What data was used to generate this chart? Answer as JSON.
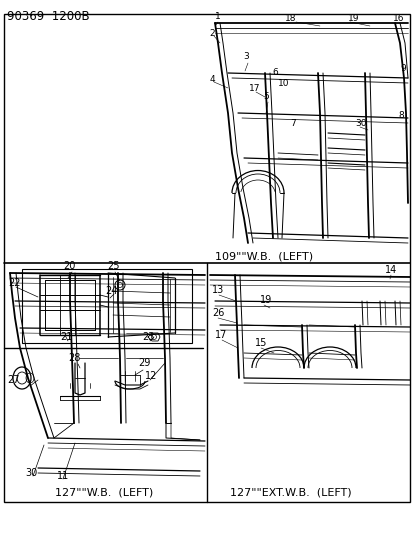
{
  "title": "90369  1200B",
  "bg_color": "#ffffff",
  "border_color": "#000000",
  "text_color": "#000000",
  "fig_width": 4.14,
  "fig_height": 5.33,
  "dpi": 100,
  "label_109wb": "109\"\"W.B.  (LEFT)",
  "label_127wb": "127\"\"W.B.  (LEFT)",
  "label_127extwb": "127\"\"EXT.W.B.  (LEFT)"
}
